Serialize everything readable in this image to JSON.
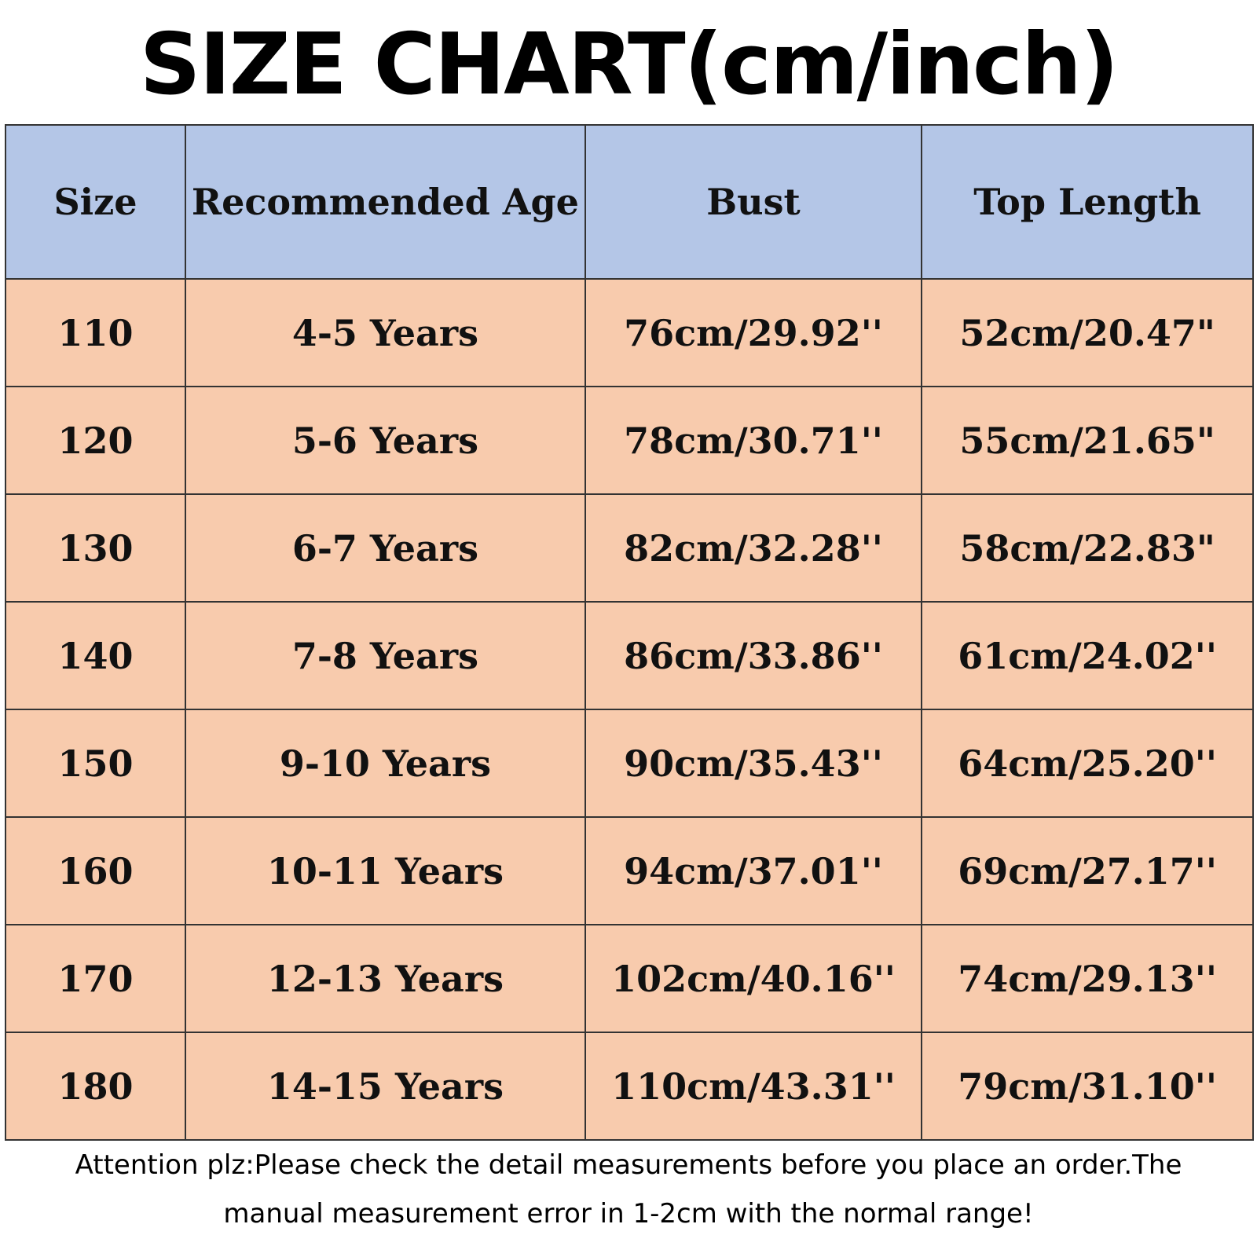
{
  "header": {
    "title": "SIZE CHART(cm/inch)"
  },
  "table": {
    "columns": [
      "Size",
      "Recommended Age",
      "Bust",
      "Top Length"
    ],
    "rows": [
      [
        "110",
        "4-5 Years",
        "76cm/29.92''",
        "52cm/20.47\""
      ],
      [
        "120",
        "5-6 Years",
        "78cm/30.71''",
        "55cm/21.65\""
      ],
      [
        "130",
        "6-7 Years",
        "82cm/32.28''",
        "58cm/22.83\""
      ],
      [
        "140",
        "7-8 Years",
        "86cm/33.86''",
        "61cm/24.02''"
      ],
      [
        "150",
        "9-10 Years",
        "90cm/35.43''",
        "64cm/25.20''"
      ],
      [
        "160",
        "10-11 Years",
        "94cm/37.01''",
        "69cm/27.17''"
      ],
      [
        "170",
        "12-13 Years",
        "102cm/40.16''",
        "74cm/29.13''"
      ],
      [
        "180",
        "14-15 Years",
        "110cm/43.31''",
        "79cm/31.10''"
      ]
    ]
  },
  "footer": {
    "note": "Attention plz:Please check the detail measurements before you place an order.The manual measurement error in 1-2cm with the normal range!"
  }
}
